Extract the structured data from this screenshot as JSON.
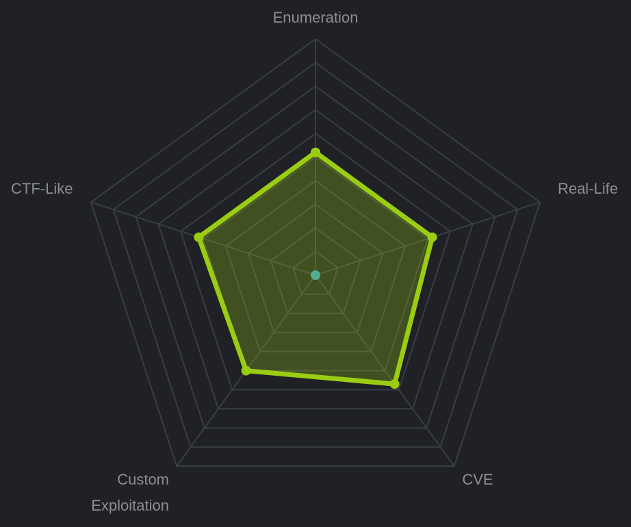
{
  "chart_data": {
    "type": "radar",
    "axes": [
      "Enumeration",
      "Real-Life",
      "CVE",
      "Custom Exploitation",
      "CTF-Like"
    ],
    "axis_label_lines": [
      [
        "Enumeration"
      ],
      [
        "Real-Life"
      ],
      [
        "CVE"
      ],
      [
        "Custom",
        "Exploitation"
      ],
      [
        "CTF-Like"
      ]
    ],
    "range": [
      0,
      10
    ],
    "levels": 10,
    "grid": true,
    "series": [
      {
        "values": [
          5.2,
          5.2,
          5.7,
          5.0,
          5.2
        ],
        "color": "#9acd12"
      }
    ],
    "center_point_color": "#4fae91",
    "grid_color": "#3a3d43",
    "background_color": "#1f2126"
  }
}
